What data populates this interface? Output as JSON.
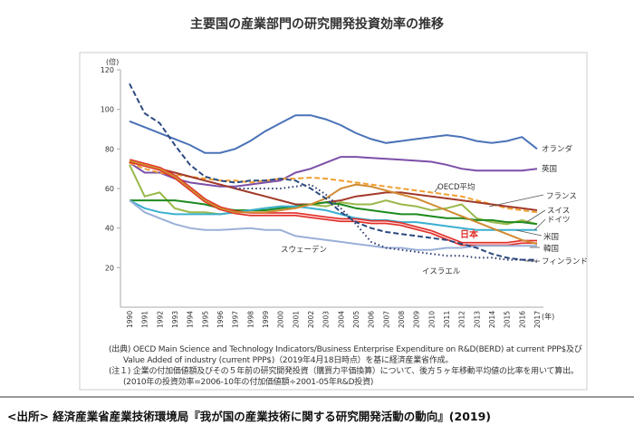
{
  "chart_data": {
    "type": "line",
    "title": "主要国の産業部門の研究開発投資効率の推移",
    "ylabel": "(倍)",
    "xlabel": "(年)",
    "ylim": [
      0,
      120
    ],
    "yticks": [
      20,
      40,
      60,
      80,
      100,
      120
    ],
    "x": [
      1990,
      1991,
      1992,
      1993,
      1994,
      1995,
      1996,
      1997,
      1998,
      1999,
      2000,
      2001,
      2002,
      2003,
      2004,
      2005,
      2006,
      2007,
      2008,
      2009,
      2010,
      2011,
      2012,
      2013,
      2014,
      2015,
      2016,
      2017
    ],
    "grid": false,
    "legend": "inline labels at line ends",
    "series": [
      {
        "name": "オランダ",
        "color": "#4a72b8",
        "style": "solid",
        "values": [
          94,
          91,
          88,
          85,
          82,
          78,
          78,
          80,
          84,
          89,
          93,
          97,
          97,
          95,
          92,
          88,
          85,
          83,
          84,
          85,
          86,
          87,
          86,
          84,
          83,
          84,
          86,
          80
        ]
      },
      {
        "name": "英国",
        "color": "#7c4fa8",
        "style": "solid",
        "values": [
          73,
          68,
          68,
          65,
          63,
          62,
          61,
          61,
          62,
          63,
          64,
          68,
          70,
          73,
          76,
          76,
          75.5,
          75,
          74.5,
          74,
          73.5,
          72,
          70,
          69,
          69,
          69,
          69,
          70
        ]
      },
      {
        "name": "OECD平均",
        "color": "#f0a030",
        "style": "dashed",
        "values": [
          73,
          70,
          68,
          67,
          66,
          65,
          64,
          64,
          63,
          64,
          65,
          65,
          65.5,
          65,
          64,
          63,
          62,
          61,
          60,
          59,
          58,
          57,
          56,
          54,
          52,
          50,
          49,
          48
        ]
      },
      {
        "name": "フランス",
        "color": "#a23a2a",
        "style": "solid",
        "values": [
          74,
          72,
          70,
          68,
          66,
          64,
          62,
          60,
          58,
          56,
          54,
          52,
          52,
          53,
          54,
          56,
          57,
          58,
          58,
          57,
          56,
          55,
          54,
          53,
          52,
          51,
          50,
          49
        ]
      },
      {
        "name": "スイス",
        "color": "#9ab84a",
        "style": "solid",
        "values": [
          72,
          56,
          58,
          50,
          48,
          48,
          47,
          48,
          49,
          50,
          51,
          51,
          52,
          51,
          53,
          52,
          52,
          54,
          52,
          51,
          49,
          50,
          52,
          45,
          43,
          42,
          44,
          42
        ]
      },
      {
        "name": "ドイツ",
        "color": "#1e8a1e",
        "style": "solid",
        "values": [
          54,
          54,
          54,
          54,
          53,
          52,
          50,
          49,
          49,
          49,
          50,
          51,
          52,
          53,
          52,
          50,
          49,
          48,
          47,
          47,
          46,
          45,
          45,
          44,
          44,
          43,
          43,
          42
        ]
      },
      {
        "name": "米国",
        "color": "#3ab0d0",
        "style": "solid",
        "values": [
          54,
          50,
          48,
          47,
          47,
          47,
          47,
          48,
          49,
          50,
          51,
          51,
          50,
          49,
          47,
          45,
          44,
          44,
          43,
          43,
          42,
          41,
          40,
          39,
          39,
          39,
          39,
          39
        ]
      },
      {
        "name": "日本",
        "color": "#e0302a",
        "style": "double",
        "values": [
          74,
          72,
          70,
          66,
          60,
          54,
          50,
          48,
          47,
          47,
          47,
          47,
          46,
          45,
          44,
          44,
          43,
          43,
          42,
          40,
          38,
          35,
          32,
          32,
          32,
          32,
          33,
          33
        ]
      },
      {
        "name": "韓国",
        "color": "#d08a30",
        "style": "solid",
        "values": [
          74,
          72,
          70,
          66,
          60,
          54,
          50,
          48,
          48,
          48,
          49,
          50,
          52,
          55,
          60,
          62,
          61,
          59,
          57,
          55,
          52,
          49,
          46,
          43,
          40,
          37,
          34,
          32
        ]
      },
      {
        "name": "スウェーデン",
        "color": "#9ab0d8",
        "style": "solid",
        "values": [
          54,
          48,
          45,
          42,
          40,
          39,
          39,
          39.5,
          40,
          39,
          39,
          36,
          35,
          34,
          33,
          32,
          31,
          30,
          30,
          29,
          29,
          30,
          30,
          31,
          31,
          31,
          31,
          31
        ]
      },
      {
        "name": "フィンランド",
        "color": "#2c4a80",
        "style": "dashed",
        "values": [
          113,
          98,
          93,
          82,
          72,
          66,
          64,
          63,
          64,
          64,
          65,
          64,
          60,
          55,
          48,
          43,
          40,
          38,
          37,
          36,
          35,
          34,
          32,
          30,
          27,
          25,
          24,
          24
        ]
      },
      {
        "name": "イスラエル",
        "color": "#2c3a70",
        "style": "dotted",
        "values": [
          null,
          null,
          null,
          null,
          null,
          null,
          null,
          60,
          60,
          60,
          60,
          61,
          62,
          57,
          50,
          42,
          33,
          30,
          29,
          28,
          27,
          26,
          26,
          25,
          25,
          24,
          24,
          23
        ]
      }
    ]
  },
  "notes": [
    "(出典) OECD Main Science and Technology Indicators/Business Enterprise Expenditure on R&D(BERD) at current PPP$及び",
    "Value Added of industry (current PPP$)（2019年4月18日時点）を基に経済産業省作成。",
    "(注１) 企業の付加価値額及びその５年前の研究開発投資（購買力平価換算）について、後方５ヶ年移動平均値の比率を用いて算出。",
    "(2010年の投資効率=2006-10年の付加価値額÷2001-05年R&D投資)"
  ],
  "source": "<出所> 経済産業省産業技術環境局『我が国の産業技術に関する研究開発活動の動向』(2019)"
}
